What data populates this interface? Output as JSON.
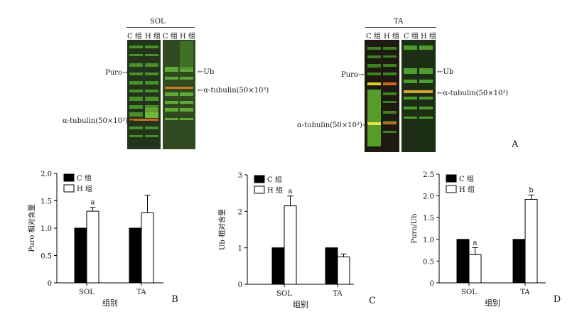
{
  "panel_a": {
    "letter": "A",
    "sol": {
      "title": "SOL",
      "lanes": [
        "C 组",
        "H 组",
        "C 组",
        "H 组"
      ],
      "left_labels": {
        "puro": "Puro",
        "tubulin": "α-tubulin(50×10³)"
      },
      "right_labels": {
        "ub": "Ub",
        "tubulin": "α-tubulin(50×10³)"
      }
    },
    "ta": {
      "title": "TA",
      "lanes": [
        "C 组",
        "H 组",
        "C 组",
        "H 组"
      ],
      "left_labels": {
        "puro": "Puro",
        "tubulin": "α-tubulin(50×10³)"
      },
      "right_labels": {
        "ub": "Ub",
        "tubulin": "α-tubulin(50×10³)"
      }
    }
  },
  "chart_data": [
    {
      "panel": "B",
      "type": "bar",
      "categories": [
        "SOL",
        "TA"
      ],
      "series": [
        {
          "name": "C 组",
          "values": [
            1.0,
            1.0
          ],
          "errors": [
            0,
            0
          ],
          "color": "#000000"
        },
        {
          "name": "H 组",
          "values": [
            1.31,
            1.28
          ],
          "errors": [
            0.07,
            0.32
          ],
          "color": "#ffffff"
        }
      ],
      "annotations": [
        {
          "category": "SOL",
          "series": 1,
          "text": "a"
        }
      ],
      "ylabel": "Puro 相对含量",
      "xlabel": "组别",
      "ylim": [
        0,
        2.0
      ],
      "yticks": [
        "0",
        "0.5",
        "1.0",
        "1.5",
        "2.0"
      ],
      "legend": "top-left"
    },
    {
      "panel": "C",
      "type": "bar",
      "categories": [
        "SOL",
        "TA"
      ],
      "series": [
        {
          "name": "C 组",
          "values": [
            1.0,
            1.0
          ],
          "errors": [
            0,
            0
          ],
          "color": "#000000"
        },
        {
          "name": "H 组",
          "values": [
            2.15,
            0.75
          ],
          "errors": [
            0.27,
            0.08
          ],
          "color": "#ffffff"
        }
      ],
      "annotations": [
        {
          "category": "SOL",
          "series": 1,
          "text": "a"
        }
      ],
      "ylabel": "Ub 相对含量",
      "xlabel": "组别",
      "ylim": [
        0,
        3
      ],
      "yticks": [
        "0",
        "1",
        "2",
        "3"
      ],
      "legend": "top-left"
    },
    {
      "panel": "D",
      "type": "bar",
      "categories": [
        "SOL",
        "TA"
      ],
      "series": [
        {
          "name": "C 组",
          "values": [
            1.0,
            1.0
          ],
          "errors": [
            0,
            0
          ],
          "color": "#000000"
        },
        {
          "name": "H 组",
          "values": [
            0.65,
            1.92
          ],
          "errors": [
            0.16,
            0.1
          ],
          "color": "#ffffff"
        }
      ],
      "annotations": [
        {
          "category": "SOL",
          "series": 1,
          "text": "a"
        },
        {
          "category": "TA",
          "series": 1,
          "text": "b"
        }
      ],
      "ylabel": "Puro/Ub",
      "xlabel": "组别",
      "ylim": [
        0,
        2.5
      ],
      "yticks": [
        "0",
        "0.5",
        "1.0",
        "1.5",
        "2.0",
        "2.5"
      ],
      "legend": "top-left"
    }
  ]
}
